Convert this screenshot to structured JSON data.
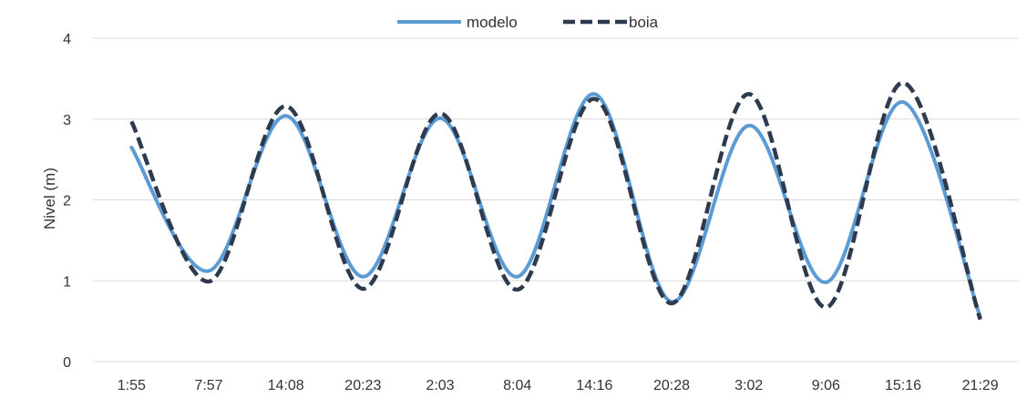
{
  "chart_data": {
    "type": "line",
    "title": "",
    "xlabel": "",
    "ylabel": "Nivel (m)",
    "ylim": [
      0,
      4
    ],
    "yticks": [
      0,
      1,
      2,
      3,
      4
    ],
    "grid": true,
    "legend_position": "top-center",
    "categories": [
      "1:55",
      "7:57",
      "14:08",
      "20:23",
      "2:03",
      "8:04",
      "14:16",
      "20:28",
      "3:02",
      "9:06",
      "15:16",
      "21:29"
    ],
    "series": [
      {
        "name": "modelo",
        "color": "#5B9BD5",
        "style": "solid",
        "values": [
          2.65,
          1.12,
          3.04,
          1.05,
          3.01,
          1.05,
          3.31,
          0.74,
          2.92,
          0.98,
          3.21,
          0.55
        ]
      },
      {
        "name": "boia",
        "color": "#2E3A4E",
        "style": "dashed",
        "values": [
          2.97,
          0.99,
          3.16,
          0.9,
          3.07,
          0.89,
          3.25,
          0.72,
          3.31,
          0.67,
          3.45,
          0.52
        ]
      }
    ]
  }
}
